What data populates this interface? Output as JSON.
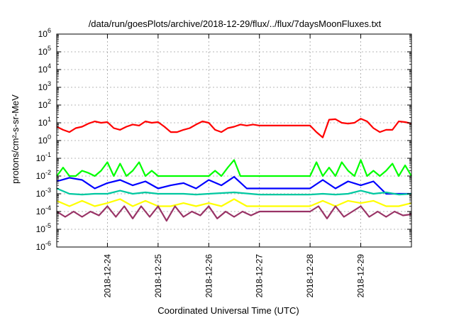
{
  "chart_data": {
    "type": "line",
    "title": "/data/run/goesPlots/archive/2018-12-29/flux/../flux/7daysMoonFluxes.txt",
    "xlabel": "Coordinated Universal Time (UTC)",
    "ylabel": "protons/cm²-s-sr-MeV",
    "y_scale": "log",
    "ylim": [
      1e-06,
      1000000.0
    ],
    "y_ticks": [
      {
        "value": 1e-06,
        "base": "10",
        "exp": "-6"
      },
      {
        "value": 1e-05,
        "base": "10",
        "exp": "-5"
      },
      {
        "value": 0.0001,
        "base": "10",
        "exp": "-4"
      },
      {
        "value": 0.001,
        "base": "10",
        "exp": "-3"
      },
      {
        "value": 0.01,
        "base": "10",
        "exp": "-2"
      },
      {
        "value": 0.1,
        "base": "10",
        "exp": "-1"
      },
      {
        "value": 1.0,
        "base": "10",
        "exp": "0"
      },
      {
        "value": 10.0,
        "base": "10",
        "exp": "1"
      },
      {
        "value": 100.0,
        "base": "10",
        "exp": "2"
      },
      {
        "value": 1000.0,
        "base": "10",
        "exp": "3"
      },
      {
        "value": 10000.0,
        "base": "10",
        "exp": "4"
      },
      {
        "value": 100000.0,
        "base": "10",
        "exp": "5"
      },
      {
        "value": 1000000.0,
        "base": "10",
        "exp": "6"
      }
    ],
    "xlim": [
      "2018-12-23T00:00",
      "2018-12-30T00:00"
    ],
    "x_ticks": [
      "2018-12-24",
      "2018-12-25",
      "2018-12-26",
      "2018-12-27",
      "2018-12-28",
      "2018-12-29"
    ],
    "grid": true,
    "series": [
      {
        "color": "#ff0000",
        "x": [
          "2018-12-23T00:00",
          "2018-12-23T03:00",
          "2018-12-23T06:00",
          "2018-12-23T09:00",
          "2018-12-23T12:00",
          "2018-12-23T15:00",
          "2018-12-23T18:00",
          "2018-12-23T21:00",
          "2018-12-24T00:00",
          "2018-12-24T03:00",
          "2018-12-24T06:00",
          "2018-12-24T09:00",
          "2018-12-24T12:00",
          "2018-12-24T15:00",
          "2018-12-24T18:00",
          "2018-12-24T21:00",
          "2018-12-25T00:00",
          "2018-12-25T03:00",
          "2018-12-25T06:00",
          "2018-12-25T09:00",
          "2018-12-25T12:00",
          "2018-12-25T15:00",
          "2018-12-25T18:00",
          "2018-12-25T21:00",
          "2018-12-26T00:00",
          "2018-12-26T03:00",
          "2018-12-26T06:00",
          "2018-12-26T09:00",
          "2018-12-26T12:00",
          "2018-12-26T15:00",
          "2018-12-26T18:00",
          "2018-12-26T21:00",
          "2018-12-27T00:00",
          "2018-12-27T06:00",
          "2018-12-27T12:00",
          "2018-12-27T18:00",
          "2018-12-28T00:00",
          "2018-12-28T03:00",
          "2018-12-28T06:00",
          "2018-12-28T09:00",
          "2018-12-28T12:00",
          "2018-12-28T15:00",
          "2018-12-28T18:00",
          "2018-12-28T21:00",
          "2018-12-29T00:00",
          "2018-12-29T03:00",
          "2018-12-29T06:00",
          "2018-12-29T09:00",
          "2018-12-29T12:00",
          "2018-12-29T15:00",
          "2018-12-29T18:00",
          "2018-12-29T21:00",
          "2018-12-30T00:00"
        ],
        "y": [
          6,
          4,
          3,
          5,
          6,
          9,
          12,
          10,
          11,
          5,
          4,
          6,
          8,
          7,
          12,
          10,
          11,
          6,
          3,
          3,
          4,
          5,
          8,
          12,
          10,
          4,
          3,
          5,
          6,
          8,
          7,
          8,
          7,
          7,
          7,
          7,
          7,
          3,
          1.5,
          15,
          16,
          10,
          9,
          10,
          17,
          12,
          5,
          3,
          4,
          4,
          12,
          11,
          9
        ]
      },
      {
        "color": "#00ff00",
        "x": [
          "2018-12-23T00:00",
          "2018-12-23T03:00",
          "2018-12-23T06:00",
          "2018-12-23T09:00",
          "2018-12-23T12:00",
          "2018-12-23T15:00",
          "2018-12-23T18:00",
          "2018-12-23T21:00",
          "2018-12-24T00:00",
          "2018-12-24T03:00",
          "2018-12-24T06:00",
          "2018-12-24T09:00",
          "2018-12-24T12:00",
          "2018-12-24T15:00",
          "2018-12-24T18:00",
          "2018-12-24T21:00",
          "2018-12-25T00:00",
          "2018-12-25T06:00",
          "2018-12-25T12:00",
          "2018-12-25T18:00",
          "2018-12-26T00:00",
          "2018-12-26T03:00",
          "2018-12-26T06:00",
          "2018-12-26T09:00",
          "2018-12-26T12:00",
          "2018-12-26T15:00",
          "2018-12-26T18:00",
          "2018-12-27T00:00",
          "2018-12-27T12:00",
          "2018-12-28T00:00",
          "2018-12-28T03:00",
          "2018-12-28T06:00",
          "2018-12-28T09:00",
          "2018-12-28T12:00",
          "2018-12-28T15:00",
          "2018-12-28T18:00",
          "2018-12-28T21:00",
          "2018-12-29T00:00",
          "2018-12-29T03:00",
          "2018-12-29T06:00",
          "2018-12-29T09:00",
          "2018-12-29T12:00",
          "2018-12-29T15:00",
          "2018-12-29T18:00",
          "2018-12-29T21:00",
          "2018-12-30T00:00"
        ],
        "y": [
          0.01,
          0.03,
          0.01,
          0.01,
          0.02,
          0.015,
          0.01,
          0.02,
          0.06,
          0.01,
          0.05,
          0.01,
          0.02,
          0.06,
          0.01,
          0.02,
          0.01,
          0.01,
          0.01,
          0.01,
          0.01,
          0.02,
          0.01,
          0.03,
          0.08,
          0.01,
          0.01,
          0.01,
          0.01,
          0.01,
          0.06,
          0.01,
          0.03,
          0.01,
          0.06,
          0.02,
          0.01,
          0.08,
          0.01,
          0.02,
          0.01,
          0.02,
          0.05,
          0.01,
          0.04,
          0.01
        ]
      },
      {
        "color": "#0000ff",
        "x": [
          "2018-12-23T00:00",
          "2018-12-23T06:00",
          "2018-12-23T12:00",
          "2018-12-23T18:00",
          "2018-12-24T00:00",
          "2018-12-24T06:00",
          "2018-12-24T12:00",
          "2018-12-24T18:00",
          "2018-12-25T00:00",
          "2018-12-25T06:00",
          "2018-12-25T12:00",
          "2018-12-25T18:00",
          "2018-12-26T00:00",
          "2018-12-26T06:00",
          "2018-12-26T12:00",
          "2018-12-26T18:00",
          "2018-12-27T00:00",
          "2018-12-27T12:00",
          "2018-12-28T00:00",
          "2018-12-28T06:00",
          "2018-12-28T12:00",
          "2018-12-28T18:00",
          "2018-12-29T00:00",
          "2018-12-29T06:00",
          "2018-12-29T12:00",
          "2018-12-29T18:00",
          "2018-12-30T00:00"
        ],
        "y": [
          0.005,
          0.008,
          0.006,
          0.002,
          0.004,
          0.006,
          0.003,
          0.005,
          0.002,
          0.003,
          0.004,
          0.002,
          0.006,
          0.003,
          0.009,
          0.002,
          0.002,
          0.002,
          0.002,
          0.006,
          0.002,
          0.005,
          0.003,
          0.005,
          0.001,
          0.001,
          0.001
        ]
      },
      {
        "color": "#00c8a0",
        "x": [
          "2018-12-23T00:00",
          "2018-12-23T06:00",
          "2018-12-23T12:00",
          "2018-12-23T18:00",
          "2018-12-24T00:00",
          "2018-12-24T06:00",
          "2018-12-24T12:00",
          "2018-12-24T18:00",
          "2018-12-25T00:00",
          "2018-12-25T06:00",
          "2018-12-25T12:00",
          "2018-12-25T18:00",
          "2018-12-26T00:00",
          "2018-12-26T12:00",
          "2018-12-27T00:00",
          "2018-12-27T12:00",
          "2018-12-28T00:00",
          "2018-12-28T06:00",
          "2018-12-28T12:00",
          "2018-12-28T18:00",
          "2018-12-29T00:00",
          "2018-12-29T06:00",
          "2018-12-29T12:00",
          "2018-12-29T18:00",
          "2018-12-30T00:00"
        ],
        "y": [
          0.002,
          0.001,
          0.0009,
          0.001,
          0.001,
          0.0015,
          0.001,
          0.0012,
          0.001,
          0.001,
          0.001,
          0.0009,
          0.001,
          0.0012,
          0.0009,
          0.0009,
          0.0009,
          0.001,
          0.0009,
          0.001,
          0.0015,
          0.001,
          0.0012,
          0.0009,
          0.001
        ]
      },
      {
        "color": "#ffff00",
        "x": [
          "2018-12-23T00:00",
          "2018-12-23T06:00",
          "2018-12-23T12:00",
          "2018-12-23T18:00",
          "2018-12-24T00:00",
          "2018-12-24T06:00",
          "2018-12-24T12:00",
          "2018-12-24T18:00",
          "2018-12-25T00:00",
          "2018-12-25T06:00",
          "2018-12-25T12:00",
          "2018-12-25T18:00",
          "2018-12-26T00:00",
          "2018-12-26T06:00",
          "2018-12-26T12:00",
          "2018-12-26T18:00",
          "2018-12-27T00:00",
          "2018-12-27T12:00",
          "2018-12-28T00:00",
          "2018-12-28T06:00",
          "2018-12-28T12:00",
          "2018-12-28T18:00",
          "2018-12-29T00:00",
          "2018-12-29T06:00",
          "2018-12-29T12:00",
          "2018-12-29T18:00",
          "2018-12-30T00:00"
        ],
        "y": [
          0.0004,
          0.0002,
          0.0004,
          0.0002,
          0.0003,
          0.0005,
          0.0002,
          0.0004,
          0.0002,
          0.0002,
          0.0003,
          0.0002,
          0.0003,
          0.0002,
          0.0005,
          0.0002,
          0.0002,
          0.0002,
          0.0002,
          0.0004,
          0.0002,
          0.0004,
          0.0003,
          0.0004,
          0.0002,
          0.0002,
          0.0003
        ]
      },
      {
        "color": "#993366",
        "x": [
          "2018-12-23T00:00",
          "2018-12-23T04:00",
          "2018-12-23T08:00",
          "2018-12-23T12:00",
          "2018-12-23T16:00",
          "2018-12-23T20:00",
          "2018-12-24T00:00",
          "2018-12-24T04:00",
          "2018-12-24T08:00",
          "2018-12-24T12:00",
          "2018-12-24T16:00",
          "2018-12-24T20:00",
          "2018-12-25T00:00",
          "2018-12-25T04:00",
          "2018-12-25T08:00",
          "2018-12-25T12:00",
          "2018-12-25T16:00",
          "2018-12-25T20:00",
          "2018-12-26T00:00",
          "2018-12-26T04:00",
          "2018-12-26T08:00",
          "2018-12-26T12:00",
          "2018-12-26T16:00",
          "2018-12-26T20:00",
          "2018-12-27T00:00",
          "2018-12-27T12:00",
          "2018-12-28T00:00",
          "2018-12-28T04:00",
          "2018-12-28T08:00",
          "2018-12-28T12:00",
          "2018-12-28T16:00",
          "2018-12-28T20:00",
          "2018-12-29T00:00",
          "2018-12-29T04:00",
          "2018-12-29T08:00",
          "2018-12-29T12:00",
          "2018-12-29T16:00",
          "2018-12-29T20:00",
          "2018-12-30T00:00"
        ],
        "y": [
          0.0001,
          5e-05,
          0.0001,
          5e-05,
          0.0001,
          6e-05,
          0.0002,
          5e-05,
          0.0002,
          4e-05,
          0.0002,
          5e-05,
          0.0002,
          3e-05,
          0.0002,
          5e-05,
          0.0001,
          6e-05,
          0.0002,
          4e-05,
          0.0001,
          5e-05,
          0.0001,
          6e-05,
          0.0001,
          0.0001,
          0.0001,
          0.0002,
          4e-05,
          0.0002,
          5e-05,
          0.0001,
          0.0002,
          5e-05,
          0.0001,
          5e-05,
          0.0001,
          6e-05,
          7e-05
        ]
      }
    ]
  }
}
